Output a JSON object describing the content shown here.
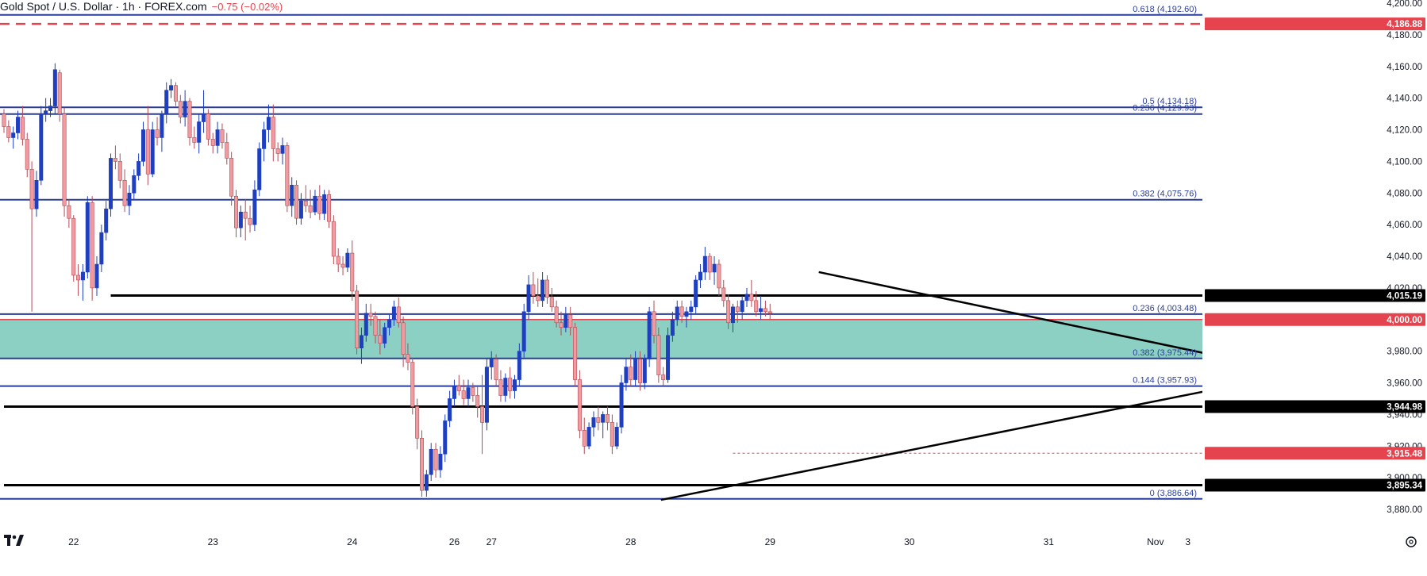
{
  "header": {
    "symbol": "Gold Spot / U.S. Dollar · 1h · FOREX.com",
    "change": "−0.75 (−0.02%)"
  },
  "colors": {
    "up": "#1e3fbf",
    "down": "#f19aa0",
    "down_border": "#b24b55",
    "fib": "#2a3f9d",
    "zone": "#8ccfc3",
    "red_dash": "#e5444f",
    "level_black": "#000000"
  },
  "chart_data": {
    "type": "candlestick",
    "y_axis": {
      "min": 3872,
      "max": 4200,
      "ticks": [
        3880,
        3900,
        3920,
        3940,
        3960,
        3980,
        4000,
        4020,
        4040,
        4060,
        4080,
        4100,
        4120,
        4140,
        4160,
        4180,
        4200
      ],
      "tick_labels": [
        "3,880.00",
        "3,900.00",
        "3,920.00",
        "3,940.00",
        "3,960.00",
        "3,980.00",
        "4,000.00",
        "4,020.00",
        "4,040.00",
        "4,060.00",
        "4,080.00",
        "4,100.00",
        "4,120.00",
        "4,140.00",
        "4,160.00",
        "4,180.00",
        "4,200.00"
      ]
    },
    "x_axis": {
      "labels": [
        {
          "text": "22",
          "bar": 15
        },
        {
          "text": "23",
          "bar": 45
        },
        {
          "text": "24",
          "bar": 75
        },
        {
          "text": "26",
          "bar": 97
        },
        {
          "text": "27",
          "bar": 105
        },
        {
          "text": "28",
          "bar": 135
        },
        {
          "text": "29",
          "bar": 165
        },
        {
          "text": "30",
          "bar": 195
        },
        {
          "text": "31",
          "bar": 225
        },
        {
          "text": "Nov",
          "bar": 248
        },
        {
          "text": "3",
          "bar": 255
        }
      ]
    },
    "support_zone": {
      "from": 3975.44,
      "to": 4000.0
    },
    "fib_levels": [
      {
        "label": "0.618 (4,192.60)",
        "value": 4192.6
      },
      {
        "label": "0.5 (4,134.18)",
        "value": 4134.18
      },
      {
        "label": "0.236 (4,129.93)",
        "value": 4129.93
      },
      {
        "label": "0.382 (4,075.76)",
        "value": 4075.76
      },
      {
        "label": "0.236 (4,003.48)",
        "value": 4003.48
      },
      {
        "label": "0.382 (3,975.44)",
        "value": 3975.44
      },
      {
        "label": "0.144 (3,957.93)",
        "value": 3957.93
      },
      {
        "label": "0 (3,886.64)",
        "value": 3886.64
      }
    ],
    "horizontal_levels": [
      {
        "value": 4015.19,
        "label": "4,015.19",
        "start_bar": 23
      },
      {
        "value": 3944.98,
        "label": "3,944.98",
        "start_bar": 0
      },
      {
        "value": 3895.34,
        "label": "3,895.34",
        "start_bar": 0
      }
    ],
    "red_levels": [
      {
        "value": 4186.88,
        "label": "4,186.88",
        "style": "dashed"
      },
      {
        "value": 4000.0,
        "label": "4,000.00",
        "style": "solid"
      },
      {
        "value": 3915.48,
        "label": "3,915.48",
        "style": "dotted",
        "start_bar": 157
      }
    ],
    "trendlines": [
      {
        "from": {
          "bar": 175.5,
          "value": 4030
        },
        "to": {
          "bar": 269.5,
          "value": 3972
        }
      },
      {
        "from": {
          "bar": 141.5,
          "value": 3886
        },
        "to": {
          "bar": 269.5,
          "value": 3961
        }
      }
    ],
    "candles": [
      [
        4130,
        4133,
        4118,
        4122
      ],
      [
        4122,
        4126,
        4112,
        4115
      ],
      [
        4115,
        4122,
        4108,
        4118
      ],
      [
        4118,
        4132,
        4114,
        4128
      ],
      [
        4128,
        4135,
        4110,
        4114
      ],
      [
        4114,
        4118,
        4090,
        4095
      ],
      [
        4095,
        4100,
        4005,
        4070
      ],
      [
        4070,
        4094,
        4065,
        4088
      ],
      [
        4088,
        4135,
        4085,
        4130
      ],
      [
        4130,
        4140,
        4125,
        4132
      ],
      [
        4132,
        4140,
        4128,
        4135
      ],
      [
        4135,
        4162,
        4130,
        4158
      ],
      [
        4156,
        4158,
        4125,
        4130
      ],
      [
        4130,
        4134,
        4065,
        4072
      ],
      [
        4072,
        4076,
        4058,
        4064
      ],
      [
        4064,
        4066,
        4024,
        4028
      ],
      [
        4028,
        4035,
        4015,
        4025
      ],
      [
        4025,
        4035,
        4012,
        4030
      ],
      [
        4030,
        4078,
        4026,
        4074
      ],
      [
        4074,
        4078,
        4012,
        4020
      ],
      [
        4020,
        4040,
        4015,
        4035
      ],
      [
        4035,
        4060,
        4030,
        4055
      ],
      [
        4055,
        4075,
        4050,
        4070
      ],
      [
        4070,
        4105,
        4065,
        4102
      ],
      [
        4102,
        4110,
        4095,
        4100
      ],
      [
        4100,
        4105,
        4083,
        4088
      ],
      [
        4088,
        4095,
        4068,
        4072
      ],
      [
        4072,
        4085,
        4066,
        4080
      ],
      [
        4080,
        4095,
        4076,
        4091
      ],
      [
        4091,
        4105,
        4088,
        4100
      ],
      [
        4100,
        4125,
        4097,
        4120
      ],
      [
        4120,
        4135,
        4085,
        4092
      ],
      [
        4092,
        4125,
        4090,
        4120
      ],
      [
        4120,
        4128,
        4110,
        4115
      ],
      [
        4115,
        4132,
        4106,
        4130
      ],
      [
        4130,
        4150,
        4124,
        4145
      ],
      [
        4145,
        4152,
        4140,
        4148
      ],
      [
        4148,
        4150,
        4135,
        4138
      ],
      [
        4138,
        4142,
        4124,
        4128
      ],
      [
        4128,
        4145,
        4122,
        4138
      ],
      [
        4138,
        4140,
        4110,
        4115
      ],
      [
        4115,
        4122,
        4108,
        4112
      ],
      [
        4112,
        4130,
        4105,
        4125
      ],
      [
        4125,
        4145,
        4118,
        4130
      ],
      [
        4130,
        4133,
        4110,
        4114
      ],
      [
        4114,
        4118,
        4105,
        4110
      ],
      [
        4110,
        4125,
        4105,
        4120
      ],
      [
        4120,
        4124,
        4108,
        4112
      ],
      [
        4112,
        4118,
        4098,
        4102
      ],
      [
        4102,
        4106,
        4072,
        4078
      ],
      [
        4078,
        4082,
        4052,
        4058
      ],
      [
        4058,
        4072,
        4052,
        4068
      ],
      [
        4068,
        4076,
        4050,
        4064
      ],
      [
        4064,
        4072,
        4055,
        4060
      ],
      [
        4060,
        4088,
        4056,
        4082
      ],
      [
        4082,
        4112,
        4078,
        4108
      ],
      [
        4108,
        4125,
        4100,
        4120
      ],
      [
        4120,
        4136,
        4112,
        4128
      ],
      [
        4128,
        4136,
        4100,
        4108
      ],
      [
        4108,
        4112,
        4100,
        4105
      ],
      [
        4105,
        4115,
        4098,
        4110
      ],
      [
        4110,
        4112,
        4068,
        4072
      ],
      [
        4072,
        4090,
        4065,
        4085
      ],
      [
        4085,
        4088,
        4060,
        4064
      ],
      [
        4064,
        4080,
        4060,
        4075
      ],
      [
        4075,
        4085,
        4068,
        4072
      ],
      [
        4072,
        4082,
        4064,
        4068
      ],
      [
        4068,
        4082,
        4066,
        4078
      ],
      [
        4078,
        4085,
        4063,
        4067
      ],
      [
        4067,
        4082,
        4063,
        4079
      ],
      [
        4079,
        4082,
        4058,
        4062
      ],
      [
        4062,
        4066,
        4035,
        4040
      ],
      [
        4040,
        4045,
        4030,
        4035
      ],
      [
        4035,
        4040,
        4028,
        4033
      ],
      [
        4033,
        4045,
        4030,
        4042
      ],
      [
        4042,
        4050,
        4012,
        4018
      ],
      [
        4018,
        4022,
        3978,
        3982
      ],
      [
        3982,
        3995,
        3972,
        3990
      ],
      [
        3990,
        4010,
        3986,
        4004
      ],
      [
        4004,
        4010,
        3996,
        4002
      ],
      [
        4002,
        4005,
        3985,
        3990
      ],
      [
        3990,
        4000,
        3978,
        3985
      ],
      [
        3985,
        3998,
        3982,
        3995
      ],
      [
        3995,
        4003,
        3990,
        4000
      ],
      [
        4000,
        4012,
        3996,
        4008
      ],
      [
        4008,
        4014,
        3995,
        3998
      ],
      [
        3998,
        4002,
        3970,
        3978
      ],
      [
        3978,
        3985,
        3968,
        3973
      ],
      [
        3973,
        3976,
        3940,
        3945
      ],
      [
        3945,
        3950,
        3918,
        3925
      ],
      [
        3925,
        3930,
        3888,
        3892
      ],
      [
        3892,
        3905,
        3888,
        3902
      ],
      [
        3902,
        3922,
        3898,
        3918
      ],
      [
        3918,
        3922,
        3900,
        3905
      ],
      [
        3905,
        3920,
        3900,
        3915
      ],
      [
        3915,
        3940,
        3910,
        3936
      ],
      [
        3936,
        3955,
        3932,
        3950
      ],
      [
        3950,
        3962,
        3945,
        3958
      ],
      [
        3958,
        3965,
        3952,
        3955
      ],
      [
        3955,
        3962,
        3946,
        3950
      ],
      [
        3950,
        3962,
        3945,
        3957
      ],
      [
        3957,
        3960,
        3948,
        3952
      ],
      [
        3952,
        3958,
        3938,
        3945
      ],
      [
        3945,
        3965,
        3915,
        3935
      ],
      [
        3935,
        3975,
        3930,
        3970
      ],
      [
        3970,
        3980,
        3962,
        3975
      ],
      [
        3975,
        3978,
        3958,
        3962
      ],
      [
        3962,
        3968,
        3948,
        3952
      ],
      [
        3952,
        3966,
        3948,
        3963
      ],
      [
        3963,
        3970,
        3950,
        3955
      ],
      [
        3955,
        3965,
        3950,
        3962
      ],
      [
        3962,
        3985,
        3958,
        3980
      ],
      [
        3980,
        4010,
        3976,
        4005
      ],
      [
        4005,
        4028,
        4000,
        4022
      ],
      [
        4022,
        4030,
        4010,
        4015
      ],
      [
        4015,
        4026,
        4008,
        4012
      ],
      [
        4012,
        4030,
        4008,
        4025
      ],
      [
        4025,
        4028,
        4010,
        4014
      ],
      [
        4014,
        4020,
        4005,
        4008
      ],
      [
        4008,
        4012,
        3995,
        3998
      ],
      [
        3998,
        4005,
        3990,
        3995
      ],
      [
        3995,
        4008,
        3992,
        4003
      ],
      [
        4003,
        4008,
        3990,
        3995
      ],
      [
        3995,
        3998,
        3958,
        3962
      ],
      [
        3962,
        3968,
        3925,
        3930
      ],
      [
        3930,
        3938,
        3915,
        3920
      ],
      [
        3920,
        3935,
        3918,
        3932
      ],
      [
        3932,
        3942,
        3926,
        3938
      ],
      [
        3938,
        3945,
        3930,
        3935
      ],
      [
        3935,
        3942,
        3925,
        3940
      ],
      [
        3940,
        3945,
        3930,
        3935
      ],
      [
        3935,
        3940,
        3915,
        3920
      ],
      [
        3920,
        3935,
        3918,
        3932
      ],
      [
        3932,
        3965,
        3928,
        3960
      ],
      [
        3960,
        3975,
        3955,
        3970
      ],
      [
        3970,
        3978,
        3958,
        3962
      ],
      [
        3962,
        3980,
        3958,
        3975
      ],
      [
        3975,
        3980,
        3955,
        3960
      ],
      [
        3960,
        3978,
        3956,
        3975
      ],
      [
        3975,
        4008,
        3970,
        4005
      ],
      [
        4005,
        4012,
        3985,
        3990
      ],
      [
        3990,
        3995,
        3960,
        3965
      ],
      [
        3965,
        3970,
        3958,
        3962
      ],
      [
        3962,
        3995,
        3960,
        3990
      ],
      [
        3990,
        4005,
        3986,
        4000
      ],
      [
        4000,
        4012,
        3996,
        4008
      ],
      [
        4008,
        4012,
        3998,
        4002
      ],
      [
        4002,
        4008,
        3995,
        4005
      ],
      [
        4005,
        4012,
        4000,
        4008
      ],
      [
        4008,
        4028,
        4004,
        4025
      ],
      [
        4025,
        4035,
        4020,
        4030
      ],
      [
        4030,
        4046,
        4025,
        4040
      ],
      [
        4040,
        4042,
        4025,
        4030
      ],
      [
        4030,
        4040,
        4022,
        4035
      ],
      [
        4035,
        4038,
        4015,
        4020
      ],
      [
        4020,
        4025,
        4008,
        4012
      ],
      [
        4012,
        4016,
        3994,
        3998
      ],
      [
        3998,
        4010,
        3992,
        4008
      ],
      [
        4008,
        4012,
        3998,
        4005
      ],
      [
        4005,
        4015,
        4000,
        4012
      ],
      [
        4012,
        4020,
        4008,
        4016
      ],
      [
        4016,
        4025,
        4008,
        4012
      ],
      [
        4012,
        4018,
        4002,
        4005
      ],
      [
        4005,
        4015,
        4000,
        4007
      ],
      [
        4007,
        4012,
        4002,
        4005
      ],
      [
        4005,
        4010,
        4000,
        4004
      ]
    ]
  }
}
